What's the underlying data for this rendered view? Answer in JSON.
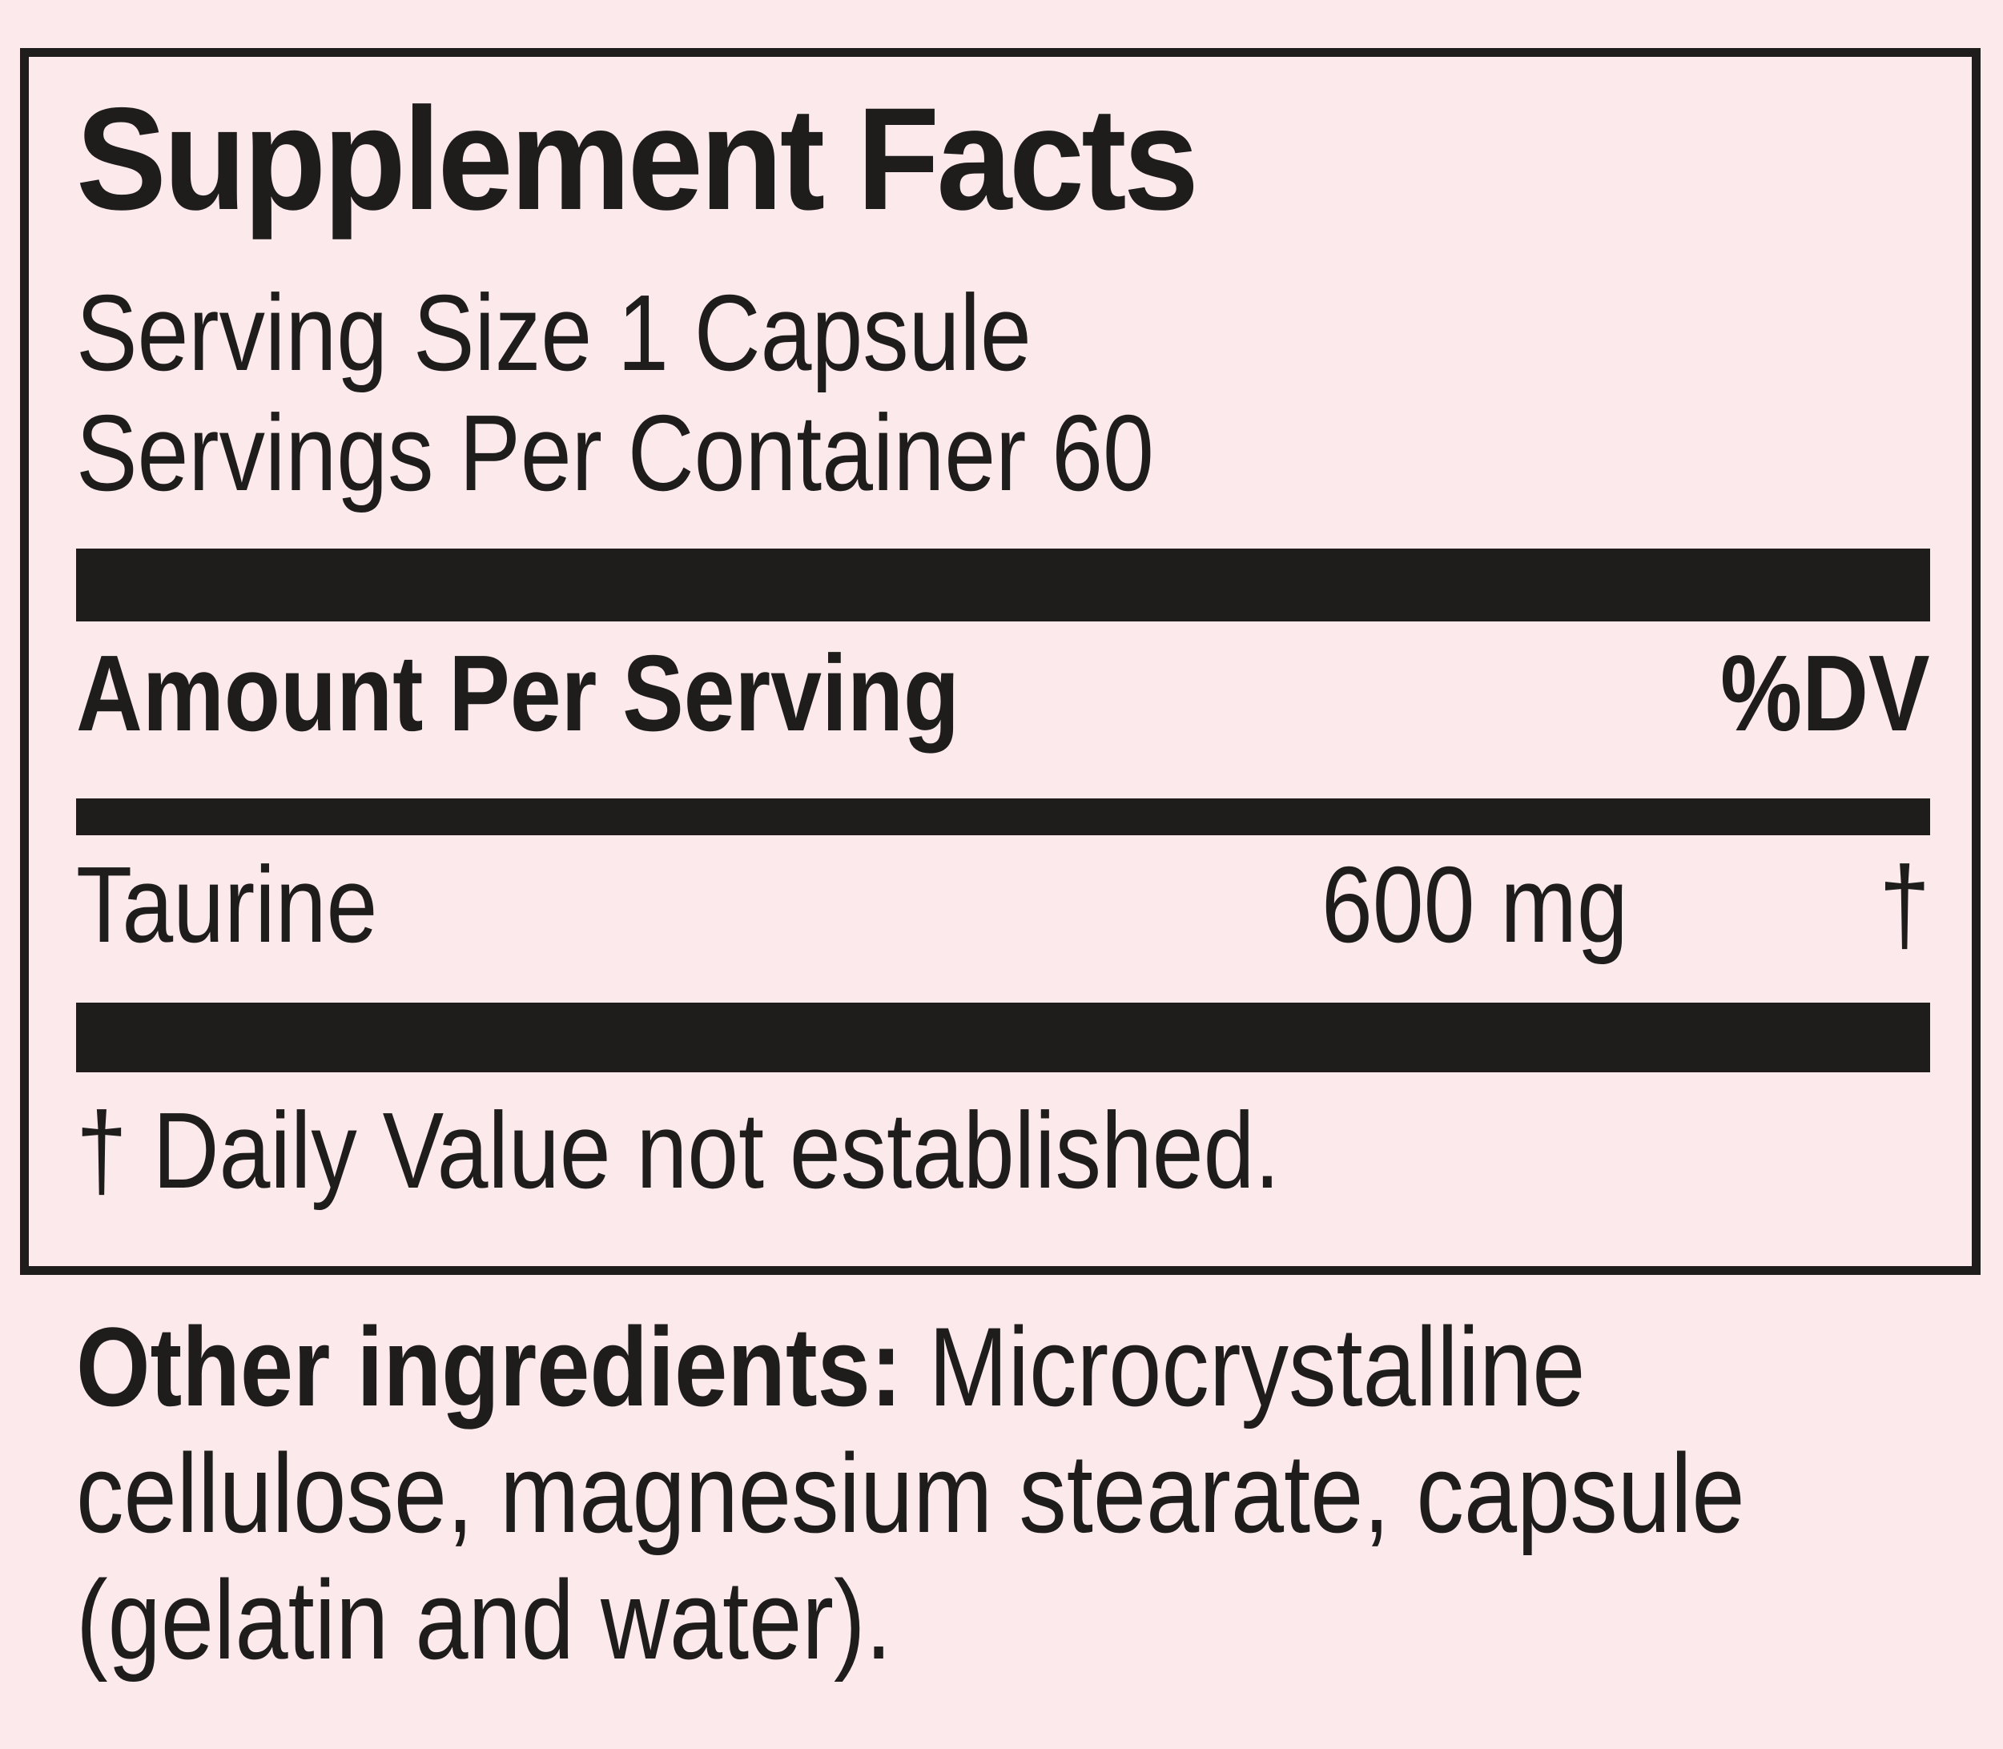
{
  "colors": {
    "background": "#fbe9ec",
    "ink": "#1e1d1c"
  },
  "panel": {
    "title": "Supplement Facts",
    "serving_size": "Serving Size 1 Capsule",
    "servings_per_container": "Servings Per Container 60",
    "columns": {
      "amount_header": "Amount Per Serving",
      "dv_header": "%DV"
    },
    "rows": [
      {
        "name": "Taurine",
        "amount": "600 mg",
        "dv": "†"
      }
    ],
    "footnote": "† Daily Value not established."
  },
  "other_ingredients": {
    "label": "Other ingredients:",
    "line1_rest": " Microcrystalline",
    "line2": "cellulose, magnesium stearate, capsule",
    "line3": "(gelatin and water)."
  }
}
